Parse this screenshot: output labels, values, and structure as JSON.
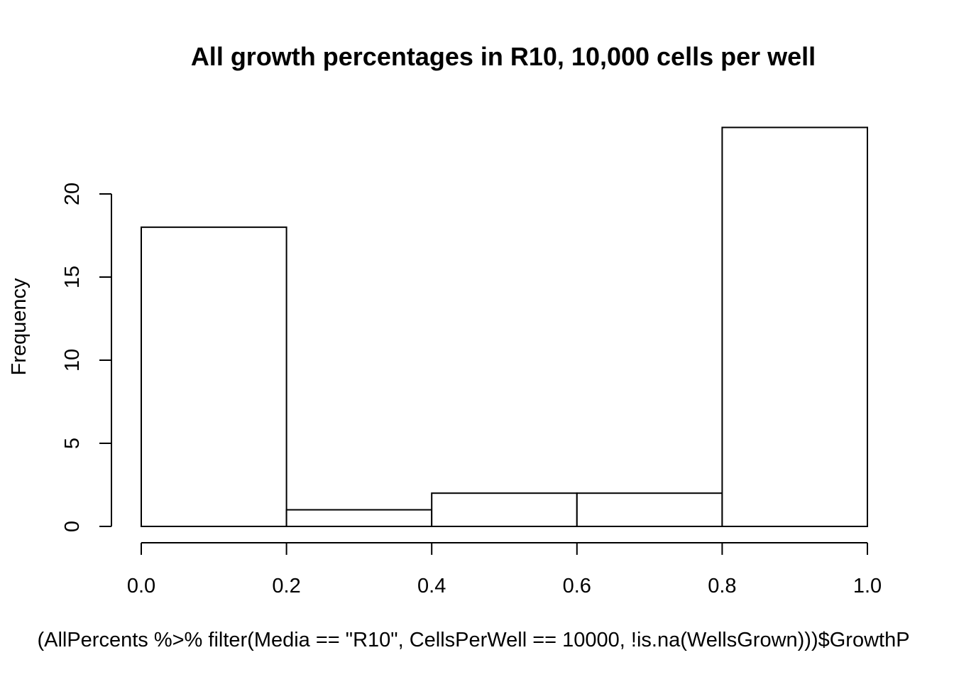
{
  "chart_data": {
    "type": "bar",
    "title": "All growth percentages in R10, 10,000 cells per well",
    "xlabel": "(AllPercents %>% filter(Media == \"R10\", CellsPerWell == 10000, !is.na(WellsGrown)))$GrowthP",
    "ylabel": "Frequency",
    "bins": [
      {
        "start": 0.0,
        "end": 0.2,
        "count": 18
      },
      {
        "start": 0.2,
        "end": 0.4,
        "count": 1
      },
      {
        "start": 0.4,
        "end": 0.6,
        "count": 2
      },
      {
        "start": 0.6,
        "end": 0.8,
        "count": 2
      },
      {
        "start": 0.8,
        "end": 1.0,
        "count": 24
      }
    ],
    "xticks": [
      "0.0",
      "0.2",
      "0.4",
      "0.6",
      "0.8",
      "1.0"
    ],
    "yticks": [
      "0",
      "5",
      "10",
      "15",
      "20"
    ],
    "xlim": [
      0,
      1
    ],
    "ylim": [
      0,
      24
    ],
    "grid": false
  }
}
